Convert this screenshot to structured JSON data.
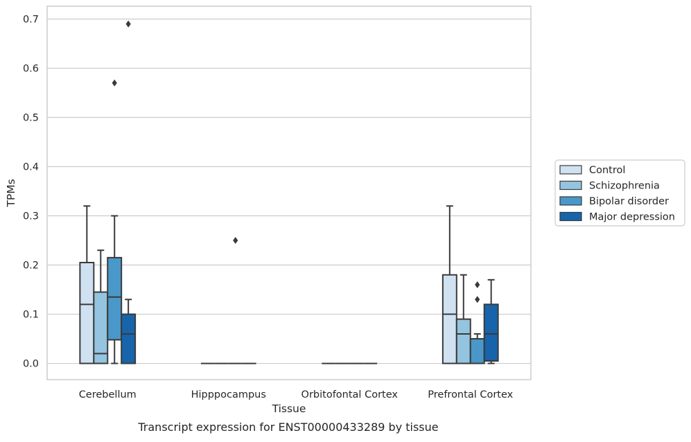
{
  "chart_data": {
    "type": "box",
    "caption": "Transcript expression for ENST00000433289 by tissue",
    "xlabel": "Tissue",
    "ylabel": "TPMs",
    "ylim": [
      -0.033,
      0.726
    ],
    "yticks": [
      0.0,
      0.1,
      0.2,
      0.3,
      0.4,
      0.5,
      0.6,
      0.7
    ],
    "ytick_labels": [
      "0.0",
      "0.1",
      "0.2",
      "0.3",
      "0.4",
      "0.5",
      "0.6",
      "0.7"
    ],
    "grid": "horizontal",
    "legend_position": "right",
    "categories": [
      "Cerebellum",
      "Hipppocampus",
      "Orbitofontal Cortex",
      "Prefrontal Cortex"
    ],
    "series": [
      {
        "name": "Control",
        "color": "#d0e1f2",
        "boxes": [
          {
            "whislo": 0.0,
            "q1": 0.0,
            "med": 0.12,
            "q3": 0.205,
            "whishi": 0.32,
            "fliers": []
          },
          {
            "whislo": 0.0,
            "q1": 0.0,
            "med": 0.0,
            "q3": 0.0,
            "whishi": 0.0,
            "fliers": []
          },
          {
            "whislo": 0.0,
            "q1": 0.0,
            "med": 0.0,
            "q3": 0.0,
            "whishi": 0.0,
            "fliers": []
          },
          {
            "whislo": 0.0,
            "q1": 0.0,
            "med": 0.1,
            "q3": 0.18,
            "whishi": 0.32,
            "fliers": []
          }
        ]
      },
      {
        "name": "Schizophrenia",
        "color": "#94c4df",
        "boxes": [
          {
            "whislo": 0.0,
            "q1": 0.0,
            "med": 0.02,
            "q3": 0.145,
            "whishi": 0.23,
            "fliers": []
          },
          {
            "whislo": 0.0,
            "q1": 0.0,
            "med": 0.0,
            "q3": 0.0,
            "whishi": 0.0,
            "fliers": []
          },
          {
            "whislo": 0.0,
            "q1": 0.0,
            "med": 0.0,
            "q3": 0.0,
            "whishi": 0.0,
            "fliers": []
          },
          {
            "whislo": 0.0,
            "q1": 0.0,
            "med": 0.06,
            "q3": 0.09,
            "whishi": 0.18,
            "fliers": []
          }
        ]
      },
      {
        "name": "Bipolar disorder",
        "color": "#4a98c9",
        "boxes": [
          {
            "whislo": 0.0,
            "q1": 0.048,
            "med": 0.135,
            "q3": 0.215,
            "whishi": 0.3,
            "fliers": [
              0.57
            ]
          },
          {
            "whislo": 0.0,
            "q1": 0.0,
            "med": 0.0,
            "q3": 0.0,
            "whishi": 0.0,
            "fliers": [
              0.25
            ]
          },
          {
            "whislo": 0.0,
            "q1": 0.0,
            "med": 0.0,
            "q3": 0.0,
            "whishi": 0.0,
            "fliers": []
          },
          {
            "whislo": 0.0,
            "q1": 0.0,
            "med": 0.05,
            "q3": 0.05,
            "whishi": 0.06,
            "fliers": [
              0.13,
              0.16
            ]
          }
        ]
      },
      {
        "name": "Major depression",
        "color": "#1764ab",
        "boxes": [
          {
            "whislo": 0.0,
            "q1": 0.0,
            "med": 0.06,
            "q3": 0.1,
            "whishi": 0.13,
            "fliers": [
              0.69
            ]
          },
          {
            "whislo": 0.0,
            "q1": 0.0,
            "med": 0.0,
            "q3": 0.0,
            "whishi": 0.0,
            "fliers": []
          },
          {
            "whislo": 0.0,
            "q1": 0.0,
            "med": 0.0,
            "q3": 0.0,
            "whishi": 0.0,
            "fliers": []
          },
          {
            "whislo": 0.0,
            "q1": 0.005,
            "med": 0.06,
            "q3": 0.12,
            "whishi": 0.17,
            "fliers": []
          }
        ]
      }
    ]
  }
}
